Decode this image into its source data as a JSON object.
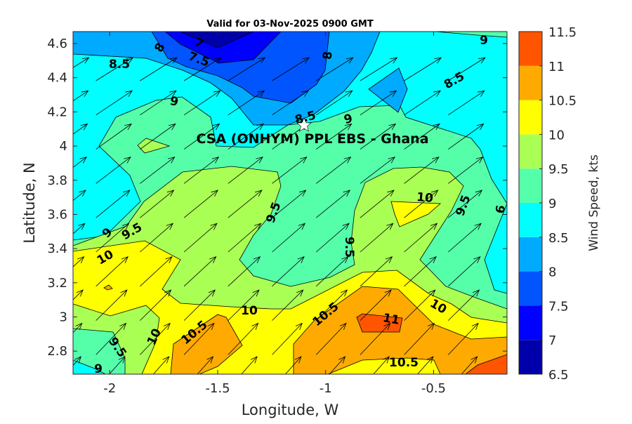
{
  "chart_data": {
    "type": "contour",
    "title": "Valid for 03-Nov-2025 0900 GMT",
    "xlabel": "Longitude, W",
    "ylabel": "Latitude, N",
    "xlim": [
      -2.17,
      -0.16
    ],
    "ylim": [
      2.665,
      4.67
    ],
    "xticks": [
      -2,
      -1.5,
      -1,
      -0.5
    ],
    "xtick_labels": [
      "-2",
      "-1.5",
      "-1",
      "-0.5"
    ],
    "yticks": [
      4.6,
      4.4,
      4.2,
      4.0,
      3.8,
      3.6,
      3.4,
      3.2,
      3.0,
      2.8
    ],
    "ytick_labels": [
      "4.6",
      "4.4",
      "4.2",
      "4",
      "3.8",
      "3.6",
      "3.4",
      "3.2",
      "3",
      "2.8"
    ],
    "annotation": "CSA (ONHYM) PPL EBS  - Ghana",
    "site_marker": {
      "symbol": "star",
      "lon": -1.1,
      "lat": 4.13
    },
    "colorbar": {
      "label": "Wind Speed, kts",
      "levels": [
        6.5,
        7,
        7.5,
        8,
        8.5,
        9,
        9.5,
        10,
        10.5,
        11,
        11.5
      ],
      "level_labels": [
        "6.5",
        "7",
        "7.5",
        "8",
        "8.5",
        "9",
        "9.5",
        "10",
        "10.5",
        "11",
        "11.5"
      ],
      "colors": [
        "#0000AA",
        "#0000FF",
        "#0055FF",
        "#00AAFF",
        "#00FFFF",
        "#55FFAA",
        "#AAFF55",
        "#FFFF00",
        "#FFAA00",
        "#FF5500"
      ]
    },
    "contour_labels": [
      "7",
      "8",
      "7.5",
      "8.5",
      "8",
      "9",
      "8.5",
      "9",
      "8.5",
      "9",
      "9",
      "9.5",
      "10",
      "9.5",
      "9.5",
      "10",
      "9.5",
      "9",
      "10",
      "10.5",
      "11",
      "10",
      "10",
      "10.5",
      "9.5",
      "9",
      "10.5"
    ],
    "wind_vectors": {
      "description": "uniform grid of wind arrows, flow toward north-east",
      "direction_to_deg_top": 58,
      "direction_to_deg_bottom": 40
    },
    "grid": false
  }
}
